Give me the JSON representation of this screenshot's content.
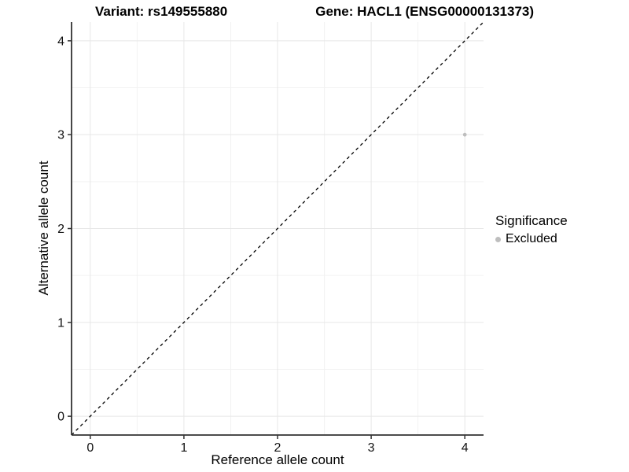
{
  "header": {
    "variant_title": "Variant: rs149555880",
    "gene_title": "Gene: HACL1 (ENSG00000131373)"
  },
  "legend": {
    "title": "Significance",
    "items": [
      {
        "label": "Excluded",
        "color": "#bebebe"
      }
    ]
  },
  "chart_data": {
    "type": "scatter",
    "title": "Variant: rs149555880 / Gene: HACL1 (ENSG00000131373)",
    "xlabel": "Reference allele count",
    "ylabel": "Alternative allele count",
    "xlim": [
      -0.2,
      4.2
    ],
    "ylim": [
      -0.2,
      4.2
    ],
    "x_ticks": [
      0,
      1,
      2,
      3,
      4
    ],
    "y_ticks": [
      0,
      1,
      2,
      3,
      4
    ],
    "x_minor_ticks": [
      0.5,
      1.5,
      2.5,
      3.5
    ],
    "y_minor_ticks": [
      0.5,
      1.5,
      2.5,
      3.5
    ],
    "grid": true,
    "legend_position": "right",
    "series": [
      {
        "name": "Excluded",
        "color": "#bebebe",
        "points": [
          {
            "x": 4,
            "y": 3
          }
        ]
      }
    ],
    "reference_line": {
      "type": "identity",
      "slope": 1,
      "intercept": 0,
      "style": "dashed",
      "color": "#000000"
    },
    "colors": {
      "grid_major": "#e7e7e7",
      "grid_minor": "#f2f2f2",
      "axis_line": "#333333",
      "tick_text": "#111111",
      "point": "#bebebe"
    }
  }
}
